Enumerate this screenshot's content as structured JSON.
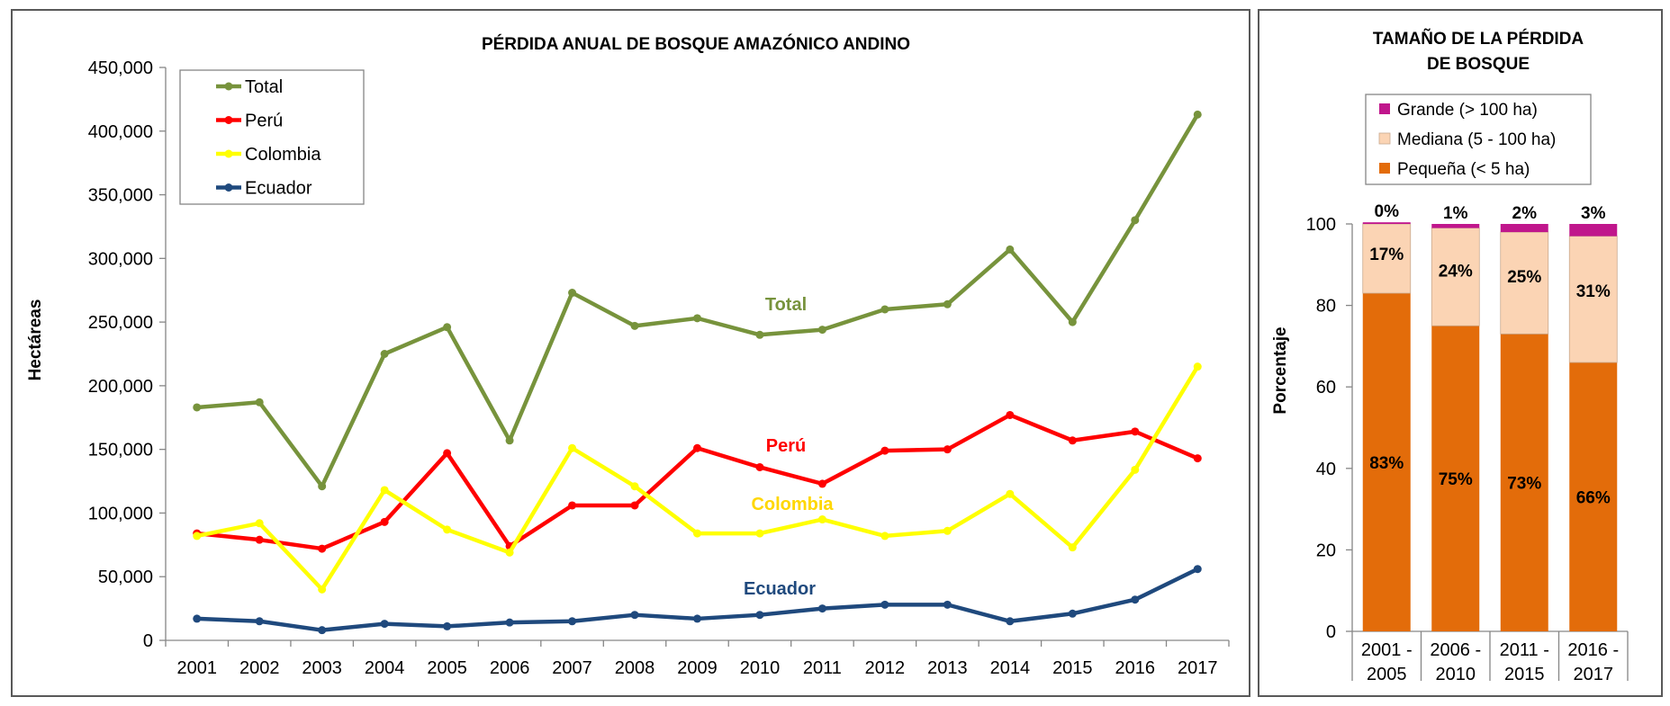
{
  "colors": {
    "total": "#77933C",
    "peru": "#FF0000",
    "colombia": "#FFFF00",
    "ecuador": "#1F497D",
    "grande": "#C0168C",
    "mediana": "#FBD4B4",
    "pequena": "#E36C0A",
    "colombia_label": "#FFD700"
  },
  "chart_data": [
    {
      "type": "line",
      "title": "PÉRDIDA ANUAL DE BOSQUE AMAZÓNICO ANDINO",
      "ylabel": "Hectáreas",
      "xlabel": "",
      "ylim": [
        0,
        450000
      ],
      "yticks": [
        0,
        50000,
        100000,
        150000,
        200000,
        250000,
        300000,
        350000,
        400000,
        450000
      ],
      "ytick_labels": [
        "0",
        "50,000",
        "100,000",
        "150,000",
        "200,000",
        "250,000",
        "300,000",
        "350,000",
        "400,000",
        "450,000"
      ],
      "categories": [
        "2001",
        "2002",
        "2003",
        "2004",
        "2005",
        "2006",
        "2007",
        "2008",
        "2009",
        "2010",
        "2011",
        "2012",
        "2013",
        "2014",
        "2015",
        "2016",
        "2017"
      ],
      "legend_position": "top-left",
      "series": [
        {
          "key": "total",
          "name": "Total",
          "inline_label": "Total",
          "values": [
            183000,
            187000,
            121000,
            225000,
            246000,
            157000,
            273000,
            247000,
            253000,
            240000,
            244000,
            260000,
            264000,
            307000,
            250000,
            330000,
            413000
          ]
        },
        {
          "key": "peru",
          "name": "Perú",
          "inline_label": "Perú",
          "values": [
            84000,
            79000,
            72000,
            93000,
            147000,
            74000,
            106000,
            106000,
            151000,
            136000,
            123000,
            149000,
            150000,
            177000,
            157000,
            164000,
            143000
          ]
        },
        {
          "key": "colombia",
          "name": "Colombia",
          "inline_label": "Colombia",
          "values": [
            82000,
            92000,
            40000,
            118000,
            87000,
            69000,
            151000,
            121000,
            84000,
            84000,
            95000,
            82000,
            86000,
            115000,
            73000,
            134000,
            215000
          ]
        },
        {
          "key": "ecuador",
          "name": "Ecuador",
          "inline_label": "Ecuador",
          "values": [
            17000,
            15000,
            8000,
            13000,
            11000,
            14000,
            15000,
            20000,
            17000,
            20000,
            25000,
            28000,
            28000,
            15000,
            21000,
            32000,
            56000
          ]
        }
      ]
    },
    {
      "type": "bar",
      "stacked": true,
      "title_lines": [
        "TAMAÑO DE LA PÉRDIDA",
        "DE BOSQUE"
      ],
      "ylabel": "Porcentaje",
      "ylim": [
        0,
        100
      ],
      "yticks": [
        0,
        20,
        40,
        60,
        80,
        100
      ],
      "legend_position": "top",
      "categories": [
        {
          "line1": "2001 -",
          "line2": "2005"
        },
        {
          "line1": "2006 -",
          "line2": "2010"
        },
        {
          "line1": "2011 -",
          "line2": "2015"
        },
        {
          "line1": "2016 -",
          "line2": "2017"
        }
      ],
      "series": [
        {
          "key": "pequena",
          "name": "Pequeña (< 5 ha)",
          "values": [
            83,
            75,
            73,
            66
          ],
          "labels": [
            "83%",
            "75%",
            "73%",
            "66%"
          ]
        },
        {
          "key": "mediana",
          "name": "Mediana (5 - 100 ha)",
          "values": [
            17,
            24,
            25,
            31
          ],
          "labels": [
            "17%",
            "24%",
            "25%",
            "31%"
          ]
        },
        {
          "key": "grande",
          "name": "Grande (> 100 ha)",
          "values": [
            0.4,
            1,
            2,
            3
          ],
          "labels": [
            "0%",
            "1%",
            "2%",
            "3%"
          ]
        }
      ],
      "legend_order": [
        "grande",
        "mediana",
        "pequena"
      ]
    }
  ]
}
